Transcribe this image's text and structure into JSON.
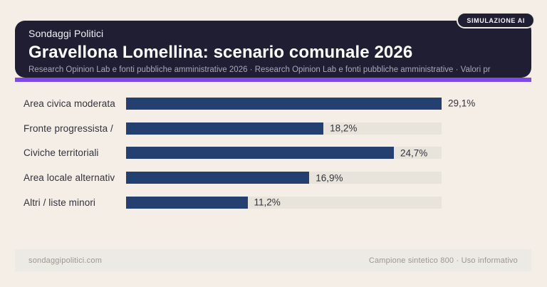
{
  "badge": {
    "label": "SIMULAZIONE AI"
  },
  "header": {
    "kicker": "Sondaggi Politici",
    "title": "Gravellona Lomellina: scenario comunale 2026",
    "subtitle": "Research Opinion Lab e fonti pubbliche amministrative 2026 · Research Opinion Lab e fonti pubbliche amministrative · Valori pr"
  },
  "chart_data": {
    "type": "bar",
    "orientation": "horizontal",
    "title": "Gravellona Lomellina: scenario comunale 2026",
    "categories": [
      "Area civica moderata",
      "Fronte progressista /",
      "Civiche territoriali",
      "Area locale alternativ",
      "Altri / liste minori"
    ],
    "values": [
      29.1,
      18.2,
      24.7,
      16.9,
      11.2
    ],
    "value_labels": [
      "29,1%",
      "18,2%",
      "24,7%",
      "16,9%",
      "11,2%"
    ],
    "unit": "%",
    "xlim": [
      0,
      29.1
    ],
    "grid": false,
    "legend": false,
    "bar_color": "#234071",
    "track_color": "#e8e4dc"
  },
  "footer": {
    "site": "sondaggipolitici.com",
    "note": "Campione sintetico 800 · Uso informativo"
  },
  "colors": {
    "background": "#f4eee7",
    "header_background": "#1f1e32",
    "accent": "#7e4ae3",
    "text_dark": "#33323c",
    "subtitle_text": "#a9a7bc",
    "footer_text": "#99978f"
  }
}
